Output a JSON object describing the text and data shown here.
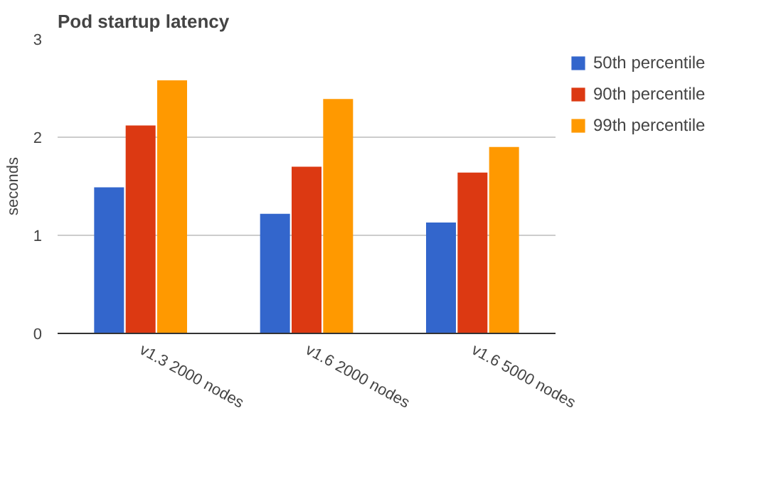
{
  "chart_data": {
    "type": "bar",
    "title": "Pod startup latency",
    "ylabel": "seconds",
    "categories": [
      "v1.3 2000 nodes",
      "v1.6 2000 nodes",
      "v1.6 5000 nodes"
    ],
    "series": [
      {
        "name": "50th percentile",
        "color": "#3366cc",
        "values": [
          1.49,
          1.22,
          1.13
        ]
      },
      {
        "name": "90th percentile",
        "color": "#dc3912",
        "values": [
          2.12,
          1.7,
          1.64
        ]
      },
      {
        "name": "99th percentile",
        "color": "#ff9900",
        "values": [
          2.58,
          2.39,
          1.9
        ]
      }
    ],
    "ylim": [
      0,
      3
    ],
    "yticks": [
      0,
      1,
      2,
      3
    ],
    "grid": "y",
    "legend": "right"
  }
}
